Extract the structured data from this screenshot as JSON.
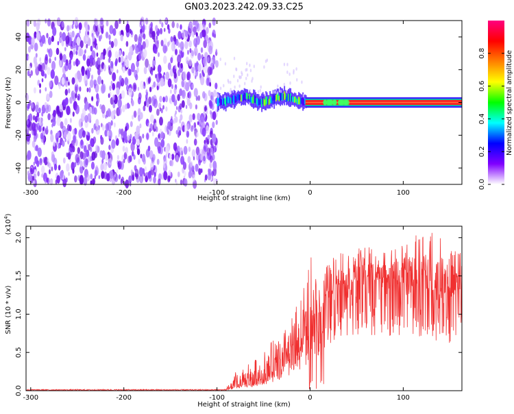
{
  "title": "GN03.2023.242.09.33.C25",
  "chart_data": [
    {
      "type": "heatmap",
      "xlabel": "Height of straight line (km)",
      "ylabel": "Frequency (Hz)",
      "xlim": [
        -305,
        163
      ],
      "ylim": [
        -50,
        50
      ],
      "xticks": [
        -300,
        -200,
        -100,
        0,
        100
      ],
      "yticks": [
        40,
        20,
        0,
        -20,
        -40
      ],
      "colorbar": {
        "label": "Normalized spectral amplitude",
        "range": [
          0.0,
          1.0
        ],
        "ticks": [
          "0.0",
          "0.2",
          "0.4",
          "0.6",
          "0.8"
        ],
        "colors": [
          "#ffffff",
          "#8000ff",
          "#0000ff",
          "#00ffff",
          "#00ff00",
          "#ffff00",
          "#ff8000",
          "#ff0000",
          "#ff0080"
        ]
      },
      "regions": [
        {
          "x_range": [
            -305,
            -100
          ],
          "description_value": "broadband noise",
          "amplitude": 0.15
        },
        {
          "x_range": [
            -100,
            -5
          ],
          "freq_center": 2,
          "freq_halfwidth": 5,
          "amplitude": 0.45
        },
        {
          "x_range": [
            -5,
            163
          ],
          "freq_center": 0,
          "freq_halfwidth": 2,
          "amplitude": 0.95
        }
      ]
    },
    {
      "type": "line",
      "xlabel": "Height of straight line (km)",
      "ylabel": "SNR (10 * v/v)",
      "multiplier": "(x10",
      "multiplier_exp": "4",
      "multiplier_close": ")",
      "xlim": [
        -305,
        163
      ],
      "ylim": [
        0.0,
        2.15
      ],
      "xticks": [
        -300,
        -200,
        -100,
        0,
        100
      ],
      "yticks": [
        "0.0",
        "0.5",
        "1.0",
        "1.5",
        "2.0"
      ],
      "color": "#f03030",
      "envelope": {
        "x": [
          -305,
          -90,
          -80,
          -60,
          -40,
          -20,
          -10,
          0,
          10,
          20,
          30,
          40,
          60,
          80,
          100,
          120,
          140,
          163
        ],
        "base": [
          0.01,
          0.01,
          0.05,
          0.1,
          0.2,
          0.4,
          0.5,
          0.7,
          0.95,
          1.2,
          1.35,
          1.4,
          1.45,
          1.4,
          1.38,
          1.35,
          1.25,
          1.25
        ],
        "peak": [
          0.03,
          0.03,
          0.25,
          0.4,
          0.65,
          0.95,
          1.3,
          1.8,
          1.5,
          1.7,
          1.85,
          1.8,
          1.9,
          1.8,
          1.95,
          2.1,
          2.05,
          1.8
        ]
      }
    }
  ]
}
